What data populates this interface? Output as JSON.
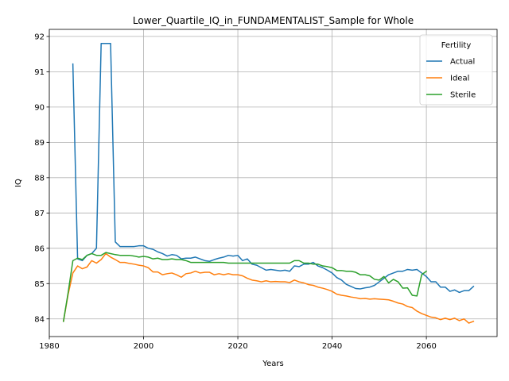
{
  "chart_data": {
    "type": "line",
    "title": "Lower_Quartile_IQ_in_FUNDAMENTALIST_Sample for Whole",
    "xlabel": "Years",
    "ylabel": "IQ",
    "xlim": [
      1980,
      2075
    ],
    "ylim": [
      83.5,
      92.2
    ],
    "xticks": [
      1980,
      2000,
      2020,
      2040,
      2060
    ],
    "yticks": [
      84,
      85,
      86,
      87,
      88,
      89,
      90,
      91,
      92
    ],
    "grid": true,
    "legend": {
      "title": "Fertility",
      "position": "top-right"
    },
    "series": [
      {
        "name": "Actual",
        "color": "#1f77b4",
        "points": [
          [
            1985,
            91.22
          ],
          [
            1986,
            85.7
          ],
          [
            1987,
            85.65
          ],
          [
            1988,
            85.8
          ],
          [
            1989,
            85.85
          ],
          [
            1990,
            86.0
          ],
          [
            1991,
            91.8
          ],
          [
            1992,
            91.8
          ],
          [
            1993,
            91.8
          ],
          [
            1994,
            86.18
          ],
          [
            1995,
            86.05
          ],
          [
            1996,
            86.05
          ],
          [
            1997,
            86.05
          ],
          [
            1998,
            86.05
          ],
          [
            1999,
            86.07
          ],
          [
            2000,
            86.07
          ],
          [
            2001,
            86.0
          ],
          [
            2002,
            85.97
          ],
          [
            2003,
            85.9
          ],
          [
            2004,
            85.85
          ],
          [
            2005,
            85.78
          ],
          [
            2006,
            85.82
          ],
          [
            2007,
            85.8
          ],
          [
            2008,
            85.7
          ],
          [
            2009,
            85.72
          ],
          [
            2010,
            85.72
          ],
          [
            2011,
            85.75
          ],
          [
            2012,
            85.7
          ],
          [
            2013,
            85.65
          ],
          [
            2014,
            85.63
          ],
          [
            2015,
            85.68
          ],
          [
            2016,
            85.72
          ],
          [
            2017,
            85.75
          ],
          [
            2018,
            85.8
          ],
          [
            2019,
            85.78
          ],
          [
            2020,
            85.8
          ],
          [
            2021,
            85.65
          ],
          [
            2022,
            85.7
          ],
          [
            2023,
            85.55
          ],
          [
            2024,
            85.52
          ],
          [
            2025,
            85.45
          ],
          [
            2026,
            85.38
          ],
          [
            2027,
            85.4
          ],
          [
            2028,
            85.38
          ],
          [
            2029,
            85.36
          ],
          [
            2030,
            85.38
          ],
          [
            2031,
            85.35
          ],
          [
            2032,
            85.5
          ],
          [
            2033,
            85.48
          ],
          [
            2034,
            85.55
          ],
          [
            2035,
            85.55
          ],
          [
            2036,
            85.6
          ],
          [
            2037,
            85.5
          ],
          [
            2038,
            85.45
          ],
          [
            2039,
            85.38
          ],
          [
            2040,
            85.3
          ],
          [
            2041,
            85.17
          ],
          [
            2042,
            85.1
          ],
          [
            2043,
            84.98
          ],
          [
            2044,
            84.92
          ],
          [
            2045,
            84.86
          ],
          [
            2046,
            84.85
          ],
          [
            2047,
            84.88
          ],
          [
            2048,
            84.9
          ],
          [
            2049,
            84.95
          ],
          [
            2050,
            85.05
          ],
          [
            2051,
            85.15
          ],
          [
            2052,
            85.25
          ],
          [
            2053,
            85.3
          ],
          [
            2054,
            85.35
          ],
          [
            2055,
            85.35
          ],
          [
            2056,
            85.4
          ],
          [
            2057,
            85.38
          ],
          [
            2058,
            85.4
          ],
          [
            2059,
            85.3
          ],
          [
            2060,
            85.2
          ],
          [
            2061,
            85.05
          ],
          [
            2062,
            85.05
          ],
          [
            2063,
            84.9
          ],
          [
            2064,
            84.9
          ],
          [
            2065,
            84.78
          ],
          [
            2066,
            84.82
          ],
          [
            2067,
            84.75
          ],
          [
            2068,
            84.8
          ],
          [
            2069,
            84.8
          ],
          [
            2070,
            84.92
          ]
        ]
      },
      {
        "name": "Ideal",
        "color": "#ff7f0e",
        "points": [
          [
            1983,
            83.93
          ],
          [
            1984,
            84.7
          ],
          [
            1985,
            85.3
          ],
          [
            1986,
            85.5
          ],
          [
            1987,
            85.42
          ],
          [
            1988,
            85.47
          ],
          [
            1989,
            85.65
          ],
          [
            1990,
            85.58
          ],
          [
            1991,
            85.68
          ],
          [
            1992,
            85.85
          ],
          [
            1993,
            85.75
          ],
          [
            1994,
            85.68
          ],
          [
            1995,
            85.6
          ],
          [
            1996,
            85.6
          ],
          [
            1997,
            85.57
          ],
          [
            1998,
            85.55
          ],
          [
            1999,
            85.52
          ],
          [
            2000,
            85.5
          ],
          [
            2001,
            85.45
          ],
          [
            2002,
            85.33
          ],
          [
            2003,
            85.33
          ],
          [
            2004,
            85.25
          ],
          [
            2005,
            85.28
          ],
          [
            2006,
            85.3
          ],
          [
            2007,
            85.25
          ],
          [
            2008,
            85.18
          ],
          [
            2009,
            85.28
          ],
          [
            2010,
            85.3
          ],
          [
            2011,
            85.35
          ],
          [
            2012,
            85.3
          ],
          [
            2013,
            85.32
          ],
          [
            2014,
            85.32
          ],
          [
            2015,
            85.25
          ],
          [
            2016,
            85.28
          ],
          [
            2017,
            85.25
          ],
          [
            2018,
            85.28
          ],
          [
            2019,
            85.25
          ],
          [
            2020,
            85.25
          ],
          [
            2021,
            85.22
          ],
          [
            2022,
            85.15
          ],
          [
            2023,
            85.1
          ],
          [
            2024,
            85.08
          ],
          [
            2025,
            85.05
          ],
          [
            2026,
            85.08
          ],
          [
            2027,
            85.05
          ],
          [
            2028,
            85.06
          ],
          [
            2029,
            85.05
          ],
          [
            2030,
            85.05
          ],
          [
            2031,
            85.03
          ],
          [
            2032,
            85.1
          ],
          [
            2033,
            85.05
          ],
          [
            2034,
            85.02
          ],
          [
            2035,
            84.97
          ],
          [
            2036,
            84.95
          ],
          [
            2037,
            84.9
          ],
          [
            2038,
            84.87
          ],
          [
            2039,
            84.83
          ],
          [
            2040,
            84.78
          ],
          [
            2041,
            84.7
          ],
          [
            2042,
            84.67
          ],
          [
            2043,
            84.65
          ],
          [
            2044,
            84.62
          ],
          [
            2045,
            84.6
          ],
          [
            2046,
            84.57
          ],
          [
            2047,
            84.58
          ],
          [
            2048,
            84.56
          ],
          [
            2049,
            84.57
          ],
          [
            2050,
            84.56
          ],
          [
            2051,
            84.55
          ],
          [
            2052,
            84.54
          ],
          [
            2053,
            84.5
          ],
          [
            2054,
            84.45
          ],
          [
            2055,
            84.42
          ],
          [
            2056,
            84.35
          ],
          [
            2057,
            84.32
          ],
          [
            2058,
            84.22
          ],
          [
            2059,
            84.15
          ],
          [
            2060,
            84.1
          ],
          [
            2061,
            84.05
          ],
          [
            2062,
            84.03
          ],
          [
            2063,
            83.98
          ],
          [
            2064,
            84.02
          ],
          [
            2065,
            83.98
          ],
          [
            2066,
            84.02
          ],
          [
            2067,
            83.95
          ],
          [
            2068,
            84.0
          ],
          [
            2069,
            83.88
          ],
          [
            2070,
            83.93
          ]
        ]
      },
      {
        "name": "Sterile",
        "color": "#2ca02c",
        "points": [
          [
            1983,
            83.93
          ],
          [
            1984,
            84.75
          ],
          [
            1985,
            85.65
          ],
          [
            1986,
            85.72
          ],
          [
            1987,
            85.68
          ],
          [
            1988,
            85.8
          ],
          [
            1989,
            85.85
          ],
          [
            1990,
            85.8
          ],
          [
            1991,
            85.8
          ],
          [
            1992,
            85.88
          ],
          [
            1993,
            85.85
          ],
          [
            1994,
            85.82
          ],
          [
            1995,
            85.8
          ],
          [
            1996,
            85.8
          ],
          [
            1997,
            85.8
          ],
          [
            1998,
            85.78
          ],
          [
            1999,
            85.75
          ],
          [
            2000,
            85.77
          ],
          [
            2001,
            85.75
          ],
          [
            2002,
            85.7
          ],
          [
            2003,
            85.72
          ],
          [
            2004,
            85.68
          ],
          [
            2005,
            85.68
          ],
          [
            2006,
            85.7
          ],
          [
            2007,
            85.68
          ],
          [
            2008,
            85.68
          ],
          [
            2009,
            85.65
          ],
          [
            2010,
            85.6
          ],
          [
            2011,
            85.6
          ],
          [
            2012,
            85.6
          ],
          [
            2013,
            85.6
          ],
          [
            2014,
            85.6
          ],
          [
            2015,
            85.6
          ],
          [
            2016,
            85.6
          ],
          [
            2017,
            85.6
          ],
          [
            2018,
            85.58
          ],
          [
            2019,
            85.58
          ],
          [
            2020,
            85.58
          ],
          [
            2021,
            85.58
          ],
          [
            2022,
            85.58
          ],
          [
            2023,
            85.58
          ],
          [
            2024,
            85.58
          ],
          [
            2025,
            85.58
          ],
          [
            2026,
            85.58
          ],
          [
            2027,
            85.58
          ],
          [
            2028,
            85.58
          ],
          [
            2029,
            85.58
          ],
          [
            2030,
            85.58
          ],
          [
            2031,
            85.58
          ],
          [
            2032,
            85.65
          ],
          [
            2033,
            85.65
          ],
          [
            2034,
            85.58
          ],
          [
            2035,
            85.58
          ],
          [
            2036,
            85.55
          ],
          [
            2037,
            85.55
          ],
          [
            2038,
            85.5
          ],
          [
            2039,
            85.48
          ],
          [
            2040,
            85.45
          ],
          [
            2041,
            85.37
          ],
          [
            2042,
            85.37
          ],
          [
            2043,
            85.35
          ],
          [
            2044,
            85.35
          ],
          [
            2045,
            85.32
          ],
          [
            2046,
            85.25
          ],
          [
            2047,
            85.25
          ],
          [
            2048,
            85.22
          ],
          [
            2049,
            85.12
          ],
          [
            2050,
            85.1
          ],
          [
            2051,
            85.2
          ],
          [
            2052,
            85.02
          ],
          [
            2053,
            85.12
          ],
          [
            2054,
            85.05
          ],
          [
            2055,
            84.87
          ],
          [
            2056,
            84.88
          ],
          [
            2057,
            84.67
          ],
          [
            2058,
            84.65
          ],
          [
            2059,
            85.25
          ],
          [
            2060,
            85.35
          ]
        ]
      }
    ]
  }
}
